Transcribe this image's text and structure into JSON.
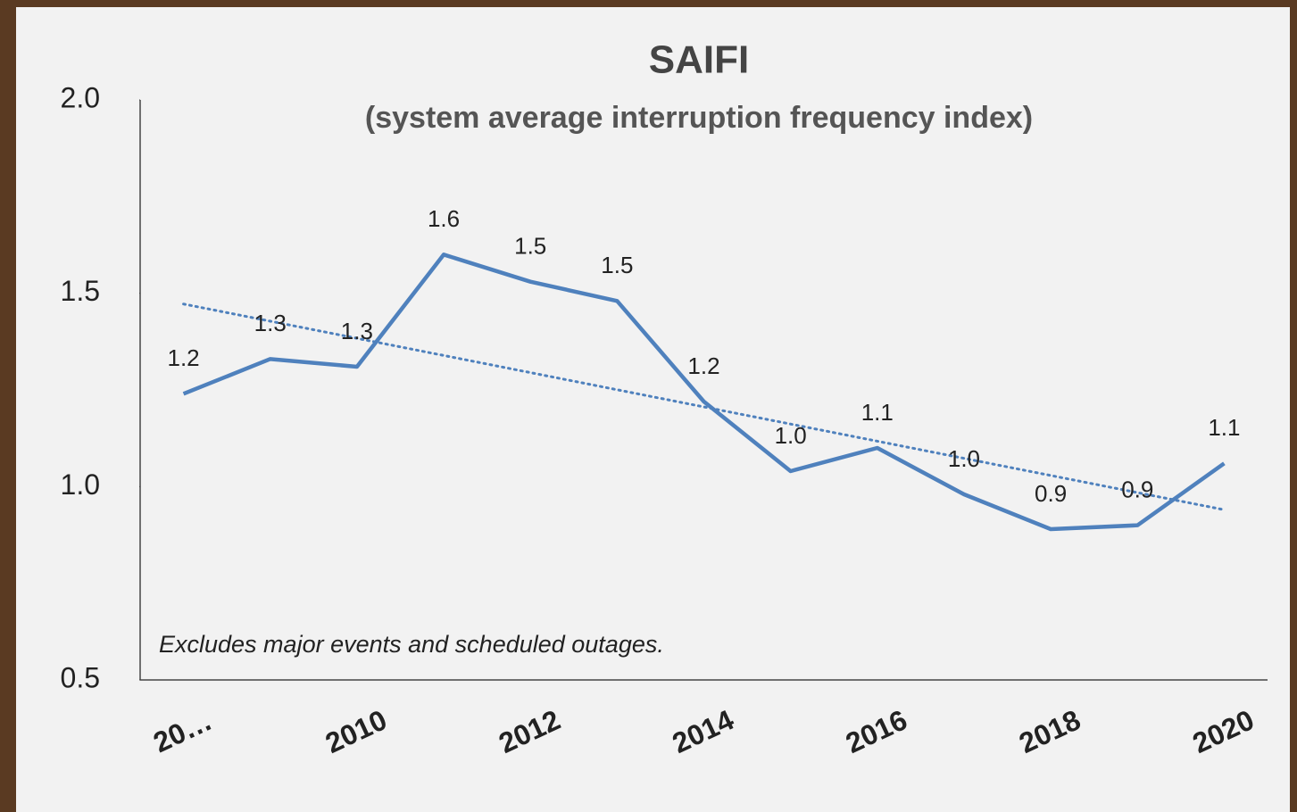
{
  "chart_data": {
    "type": "line",
    "title": "SAIFI",
    "subtitle": "(system average interruption frequency index)",
    "annotation": "Excludes major events and scheduled outages.",
    "categories": [
      "20…",
      null,
      "2010",
      null,
      "2012",
      null,
      "2014",
      null,
      "2016",
      null,
      "2018",
      null,
      "2020"
    ],
    "series": [
      {
        "name": "SAIFI",
        "color": "#4f81bd",
        "values": [
          1.24,
          1.33,
          1.31,
          1.6,
          1.53,
          1.48,
          1.22,
          1.04,
          1.1,
          0.98,
          0.89,
          0.9,
          1.06
        ],
        "value_labels": [
          "1.2",
          "1.3",
          "1.3",
          "1.6",
          "1.5",
          "1.5",
          "1.2",
          "1.0",
          "1.1",
          "1.0",
          "0.9",
          "0.9",
          "1.1"
        ]
      }
    ],
    "trendline": true,
    "ylim": [
      0.5,
      2.0
    ],
    "yticks": [
      0.5,
      {
        "value": 1,
        "label": "1.0"
      },
      1.5,
      {
        "value": 2,
        "label": "2.0"
      }
    ]
  }
}
